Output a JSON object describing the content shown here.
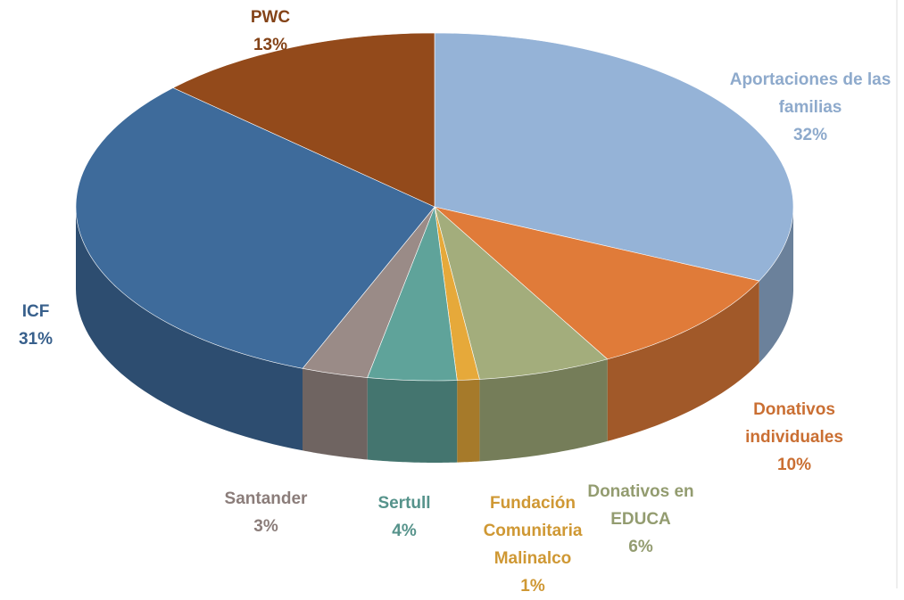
{
  "chart_data": {
    "type": "pie3d",
    "categories": [
      "Aportaciones de las familias",
      "Donativos individuales",
      "Donativos en EDUCA",
      "Fundación Comunitaria Malinalco",
      "Sertull",
      "Santander",
      "ICF",
      "PWC"
    ],
    "values": [
      32,
      10,
      6,
      1,
      4,
      3,
      31,
      13
    ],
    "value_labels": [
      "32%",
      "10%",
      "6%",
      "1%",
      "4%",
      "3%",
      "31%",
      "13%"
    ],
    "colors": [
      "#95b3d7",
      "#e07b39",
      "#a3ad7c",
      "#e6a93a",
      "#5fa39a",
      "#9a8b87",
      "#3e6b9b",
      "#934a1b"
    ]
  }
}
